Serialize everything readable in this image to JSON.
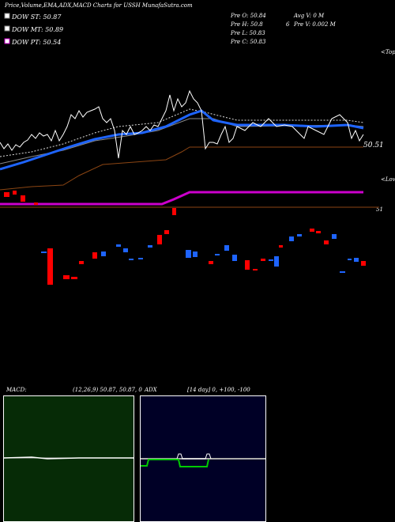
{
  "header": {
    "title": "Price,Volume,EMA,ADX,MACD Charts for USSH MunafaSutra.com"
  },
  "legend": [
    "DOW ST: 50.87",
    "DOW MT: 50.89",
    "DOW PT: 50.54"
  ],
  "info": {
    "open": "Pre  O: 50.84",
    "avg_volume": "Avg V: 0  M",
    "high": "Pre  H: 50.8",
    "high_extra": "6",
    "volume": "Pre  V: 0.002  M",
    "low": "Pre  L: 50.83",
    "close": "Pre  C: 50.83"
  },
  "markers": {
    "tops": "<Tops",
    "lows": "<Lows",
    "last_price": "50.51",
    "level": "51"
  },
  "macd": {
    "label": "MACD:",
    "params": "(12,26,9) 50.87, 50.87, 0"
  },
  "adx": {
    "label": "ADX",
    "params": "[14  day] 0, +100, -100"
  }
}
